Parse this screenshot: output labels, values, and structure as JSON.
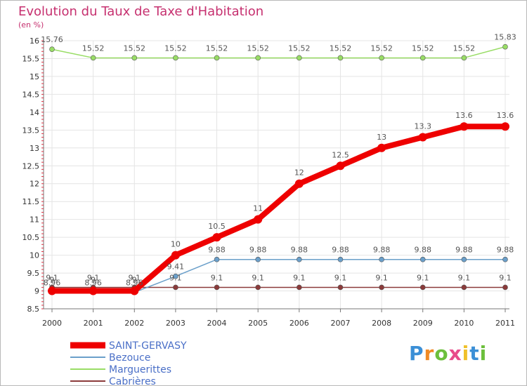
{
  "chart_data": {
    "type": "line",
    "title": "Evolution du Taux de Taxe d'Habitation",
    "ylabel": "(en %)",
    "xlabel": "",
    "x": [
      "2000",
      "2001",
      "2002",
      "2003",
      "2004",
      "2005",
      "2006",
      "2007",
      "2008",
      "2009",
      "2010",
      "2011"
    ],
    "ylim": [
      8.5,
      16
    ],
    "yticks": [
      "8.5",
      "9",
      "9.5",
      "10",
      "10.5",
      "11",
      "11.5",
      "12",
      "12.5",
      "13",
      "13.5",
      "14",
      "14.5",
      "15",
      "15.5",
      "16"
    ],
    "grid": true,
    "legend_position": "bottom-left",
    "series": [
      {
        "name": "SAINT-GERVASY",
        "color": "#ee0000",
        "values": [
          9,
          9,
          9,
          10,
          10.5,
          11,
          12,
          12.5,
          13,
          13.3,
          13.6,
          13.6
        ],
        "labels": [
          "9",
          "9",
          "9",
          "10",
          "10.5",
          "11",
          "12",
          "12.5",
          "13",
          "13.3",
          "13.6",
          "13.6"
        ]
      },
      {
        "name": "Bezouce",
        "color": "#6a9fca",
        "values": [
          8.96,
          8.96,
          8.96,
          9.41,
          9.88,
          9.88,
          9.88,
          9.88,
          9.88,
          9.88,
          9.88,
          9.88
        ],
        "labels": [
          "8.96",
          "8.96",
          "8.96",
          "9.41",
          "9.88",
          "9.88",
          "9.88",
          "9.88",
          "9.88",
          "9.88",
          "9.88",
          "9.88"
        ]
      },
      {
        "name": "Marguerittes",
        "color": "#99dd66",
        "values": [
          15.76,
          15.52,
          15.52,
          15.52,
          15.52,
          15.52,
          15.52,
          15.52,
          15.52,
          15.52,
          15.52,
          15.83
        ],
        "labels": [
          "15.76",
          "15.52",
          "15.52",
          "15.52",
          "15.52",
          "15.52",
          "15.52",
          "15.52",
          "15.52",
          "15.52",
          "15.52",
          "15.83"
        ]
      },
      {
        "name": "Cabrières",
        "color": "#8b3a3a",
        "values": [
          9.1,
          9.1,
          9.1,
          9.1,
          9.1,
          9.1,
          9.1,
          9.1,
          9.1,
          9.1,
          9.1,
          9.1
        ],
        "labels": [
          "9.1",
          "9.1",
          "9.1",
          "9.1",
          "9.1",
          "9.1",
          "9.1",
          "9.1",
          "9.1",
          "9.1",
          "9.1",
          "9.1"
        ]
      }
    ]
  },
  "brand": {
    "letters": [
      "P",
      "r",
      "o",
      "x",
      "i",
      "t",
      "i"
    ],
    "colors": [
      "#3b8fd6",
      "#f08a24",
      "#6cbf3c",
      "#e84b8a",
      "#f0c02a",
      "#3b8fd6",
      "#6cbf3c"
    ]
  }
}
